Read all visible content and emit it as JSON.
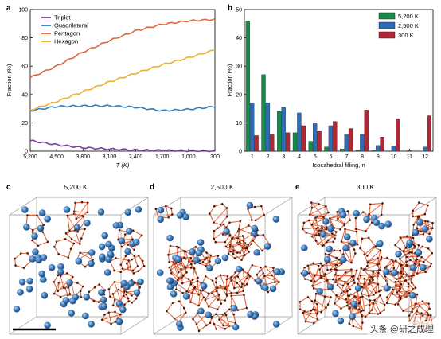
{
  "panels": {
    "a": {
      "letter": "a"
    },
    "b": {
      "letter": "b"
    },
    "c": {
      "letter": "c",
      "title": "5,200 K"
    },
    "d": {
      "letter": "d",
      "title": "2,500 K"
    },
    "e": {
      "letter": "e",
      "title": "300 K"
    }
  },
  "watermark": "头条 @研之成理",
  "chart_data": [
    {
      "type": "line",
      "xlabel": "T (K)",
      "ylabel": "Fraction (%)",
      "ylim": [
        0,
        100
      ],
      "xlim": [
        5200,
        300
      ],
      "x_ticks": [
        "5,200",
        "4,500",
        "3,800",
        "3,100",
        "2,400",
        "1,700",
        "1,000",
        "300"
      ],
      "y_ticks": [
        "0",
        "20",
        "40",
        "60",
        "80",
        "100"
      ],
      "legend_position": "top-left",
      "x": [
        5200,
        4500,
        3800,
        3100,
        2400,
        1700,
        1000,
        300
      ],
      "series": [
        {
          "name": "Triplet",
          "color": "#7b3f9e",
          "values": [
            7.5,
            4.5,
            2.5,
            1.5,
            0.8,
            0.5,
            0.3,
            0.2
          ]
        },
        {
          "name": "Quadrilateral",
          "color": "#2f7fc1",
          "values": [
            28.5,
            31.5,
            32,
            32,
            31,
            28.5,
            29.5,
            31.5
          ]
        },
        {
          "name": "Pentagon",
          "color": "#e0653a",
          "values": [
            52,
            60,
            70,
            78,
            85,
            89.5,
            92,
            93
          ]
        },
        {
          "name": "Hexagon",
          "color": "#efb02c",
          "values": [
            29,
            35,
            42,
            49,
            55,
            61,
            66,
            71.5
          ]
        }
      ]
    },
    {
      "type": "bar",
      "xlabel": "Icosahedral filling, n",
      "ylabel": "Fraction (%)",
      "ylim": [
        0,
        50
      ],
      "y_ticks": [
        "0",
        "10",
        "20",
        "30",
        "40",
        "50"
      ],
      "legend_position": "top-right",
      "categories": [
        "1",
        "2",
        "3",
        "4",
        "5",
        "6",
        "7",
        "8",
        "9",
        "10",
        "11",
        "12"
      ],
      "series": [
        {
          "name": "5,200 K",
          "color": "#1a8a4a",
          "values": [
            46,
            27,
            14,
            6.5,
            3.5,
            1.5,
            0.8,
            0.4,
            0.2,
            0.1,
            0,
            0
          ]
        },
        {
          "name": "2,500 K",
          "color": "#2c6db5",
          "values": [
            17,
            17,
            15.5,
            13.5,
            10,
            9,
            6,
            6,
            2,
            1.8,
            0.2,
            1.5
          ]
        },
        {
          "name": "300 K",
          "color": "#b02838",
          "values": [
            5.5,
            6,
            6.5,
            9,
            7,
            10.5,
            8,
            14.5,
            5,
            11.5,
            0,
            12.5
          ]
        }
      ]
    }
  ]
}
